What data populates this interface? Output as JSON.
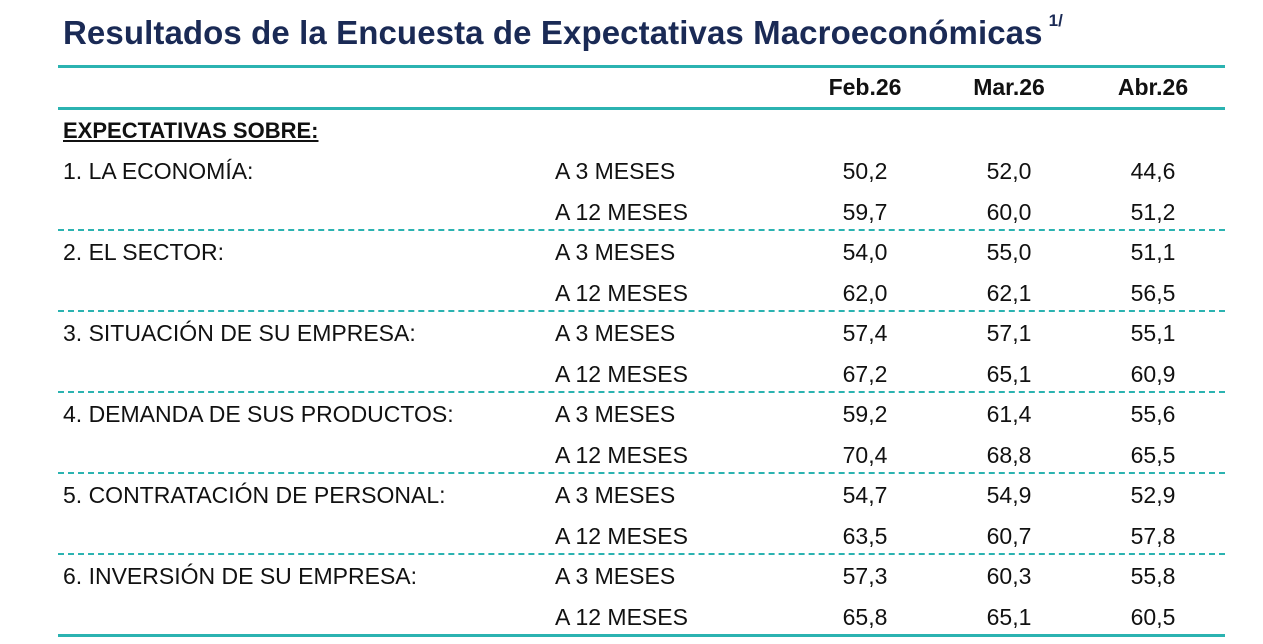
{
  "title": "Resultados de la Encuesta de Expectativas Macroeconómicas",
  "title_footnote": "1/",
  "colors": {
    "accent_rule": "#2bb3b1",
    "title": "#1a2a55"
  },
  "columns": [
    "Feb.26",
    "Mar.26",
    "Abr.26"
  ],
  "section_label": "EXPECTATIVAS SOBRE:",
  "rows": [
    {
      "label": "1. LA ECONOMÍA:",
      "horizons": [
        {
          "h": "A 3 MESES",
          "vals": [
            "50,2",
            "52,0",
            "44,6"
          ]
        },
        {
          "h": "A 12 MESES",
          "vals": [
            "59,7",
            "60,0",
            "51,2"
          ]
        }
      ]
    },
    {
      "label": "2. EL SECTOR:",
      "horizons": [
        {
          "h": "A 3 MESES",
          "vals": [
            "54,0",
            "55,0",
            "51,1"
          ]
        },
        {
          "h": "A 12 MESES",
          "vals": [
            "62,0",
            "62,1",
            "56,5"
          ]
        }
      ]
    },
    {
      "label": "3. SITUACIÓN DE SU EMPRESA:",
      "horizons": [
        {
          "h": "A 3 MESES",
          "vals": [
            "57,4",
            "57,1",
            "55,1"
          ]
        },
        {
          "h": "A 12 MESES",
          "vals": [
            "67,2",
            "65,1",
            "60,9"
          ]
        }
      ]
    },
    {
      "label": "4. DEMANDA DE SUS PRODUCTOS:",
      "horizons": [
        {
          "h": "A 3 MESES",
          "vals": [
            "59,2",
            "61,4",
            "55,6"
          ]
        },
        {
          "h": "A 12 MESES",
          "vals": [
            "70,4",
            "68,8",
            "65,5"
          ]
        }
      ]
    },
    {
      "label": "5. CONTRATACIÓN DE PERSONAL:",
      "horizons": [
        {
          "h": "A 3 MESES",
          "vals": [
            "54,7",
            "54,9",
            "52,9"
          ]
        },
        {
          "h": "A 12 MESES",
          "vals": [
            "63,5",
            "60,7",
            "57,8"
          ]
        }
      ]
    },
    {
      "label": "6. INVERSIÓN DE SU EMPRESA:",
      "horizons": [
        {
          "h": "A 3 MESES",
          "vals": [
            "57,3",
            "60,3",
            "55,8"
          ]
        },
        {
          "h": "A 12 MESES",
          "vals": [
            "65,8",
            "65,1",
            "60,5"
          ]
        }
      ]
    }
  ]
}
